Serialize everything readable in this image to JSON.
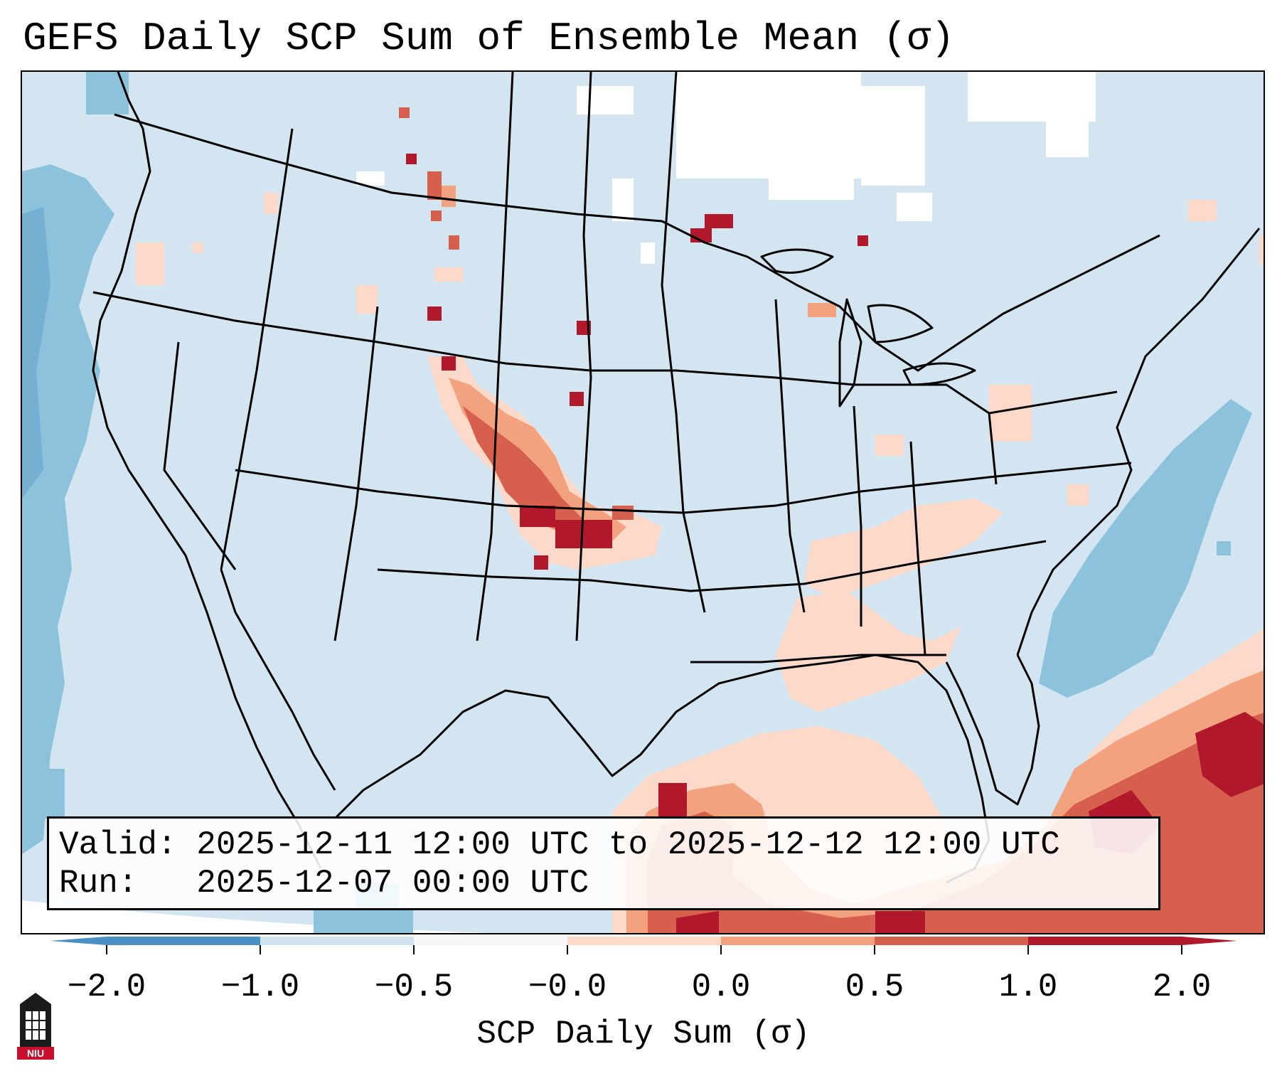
{
  "title": "GEFS Daily SCP Sum of Ensemble Mean (σ)",
  "info": {
    "valid_line": "Valid: 2025-12-11 12:00 UTC to 2025-12-12 12:00 UTC",
    "run_line": "Run:   2025-12-07 00:00 UTC"
  },
  "colorbar": {
    "label": "SCP Daily Sum (σ)",
    "ticks": [
      "−2.0",
      "−1.0",
      "−0.5",
      "−0.0",
      "0.0",
      "0.5",
      "1.0",
      "2.0"
    ],
    "colors": [
      "#4a90c4",
      "#8cc2dc",
      "#cfe3ef",
      "#f7f7f7",
      "#fcd9c8",
      "#f2a27f",
      "#d6604d",
      "#b2182b"
    ]
  },
  "logo": {
    "text": "NIU"
  }
}
